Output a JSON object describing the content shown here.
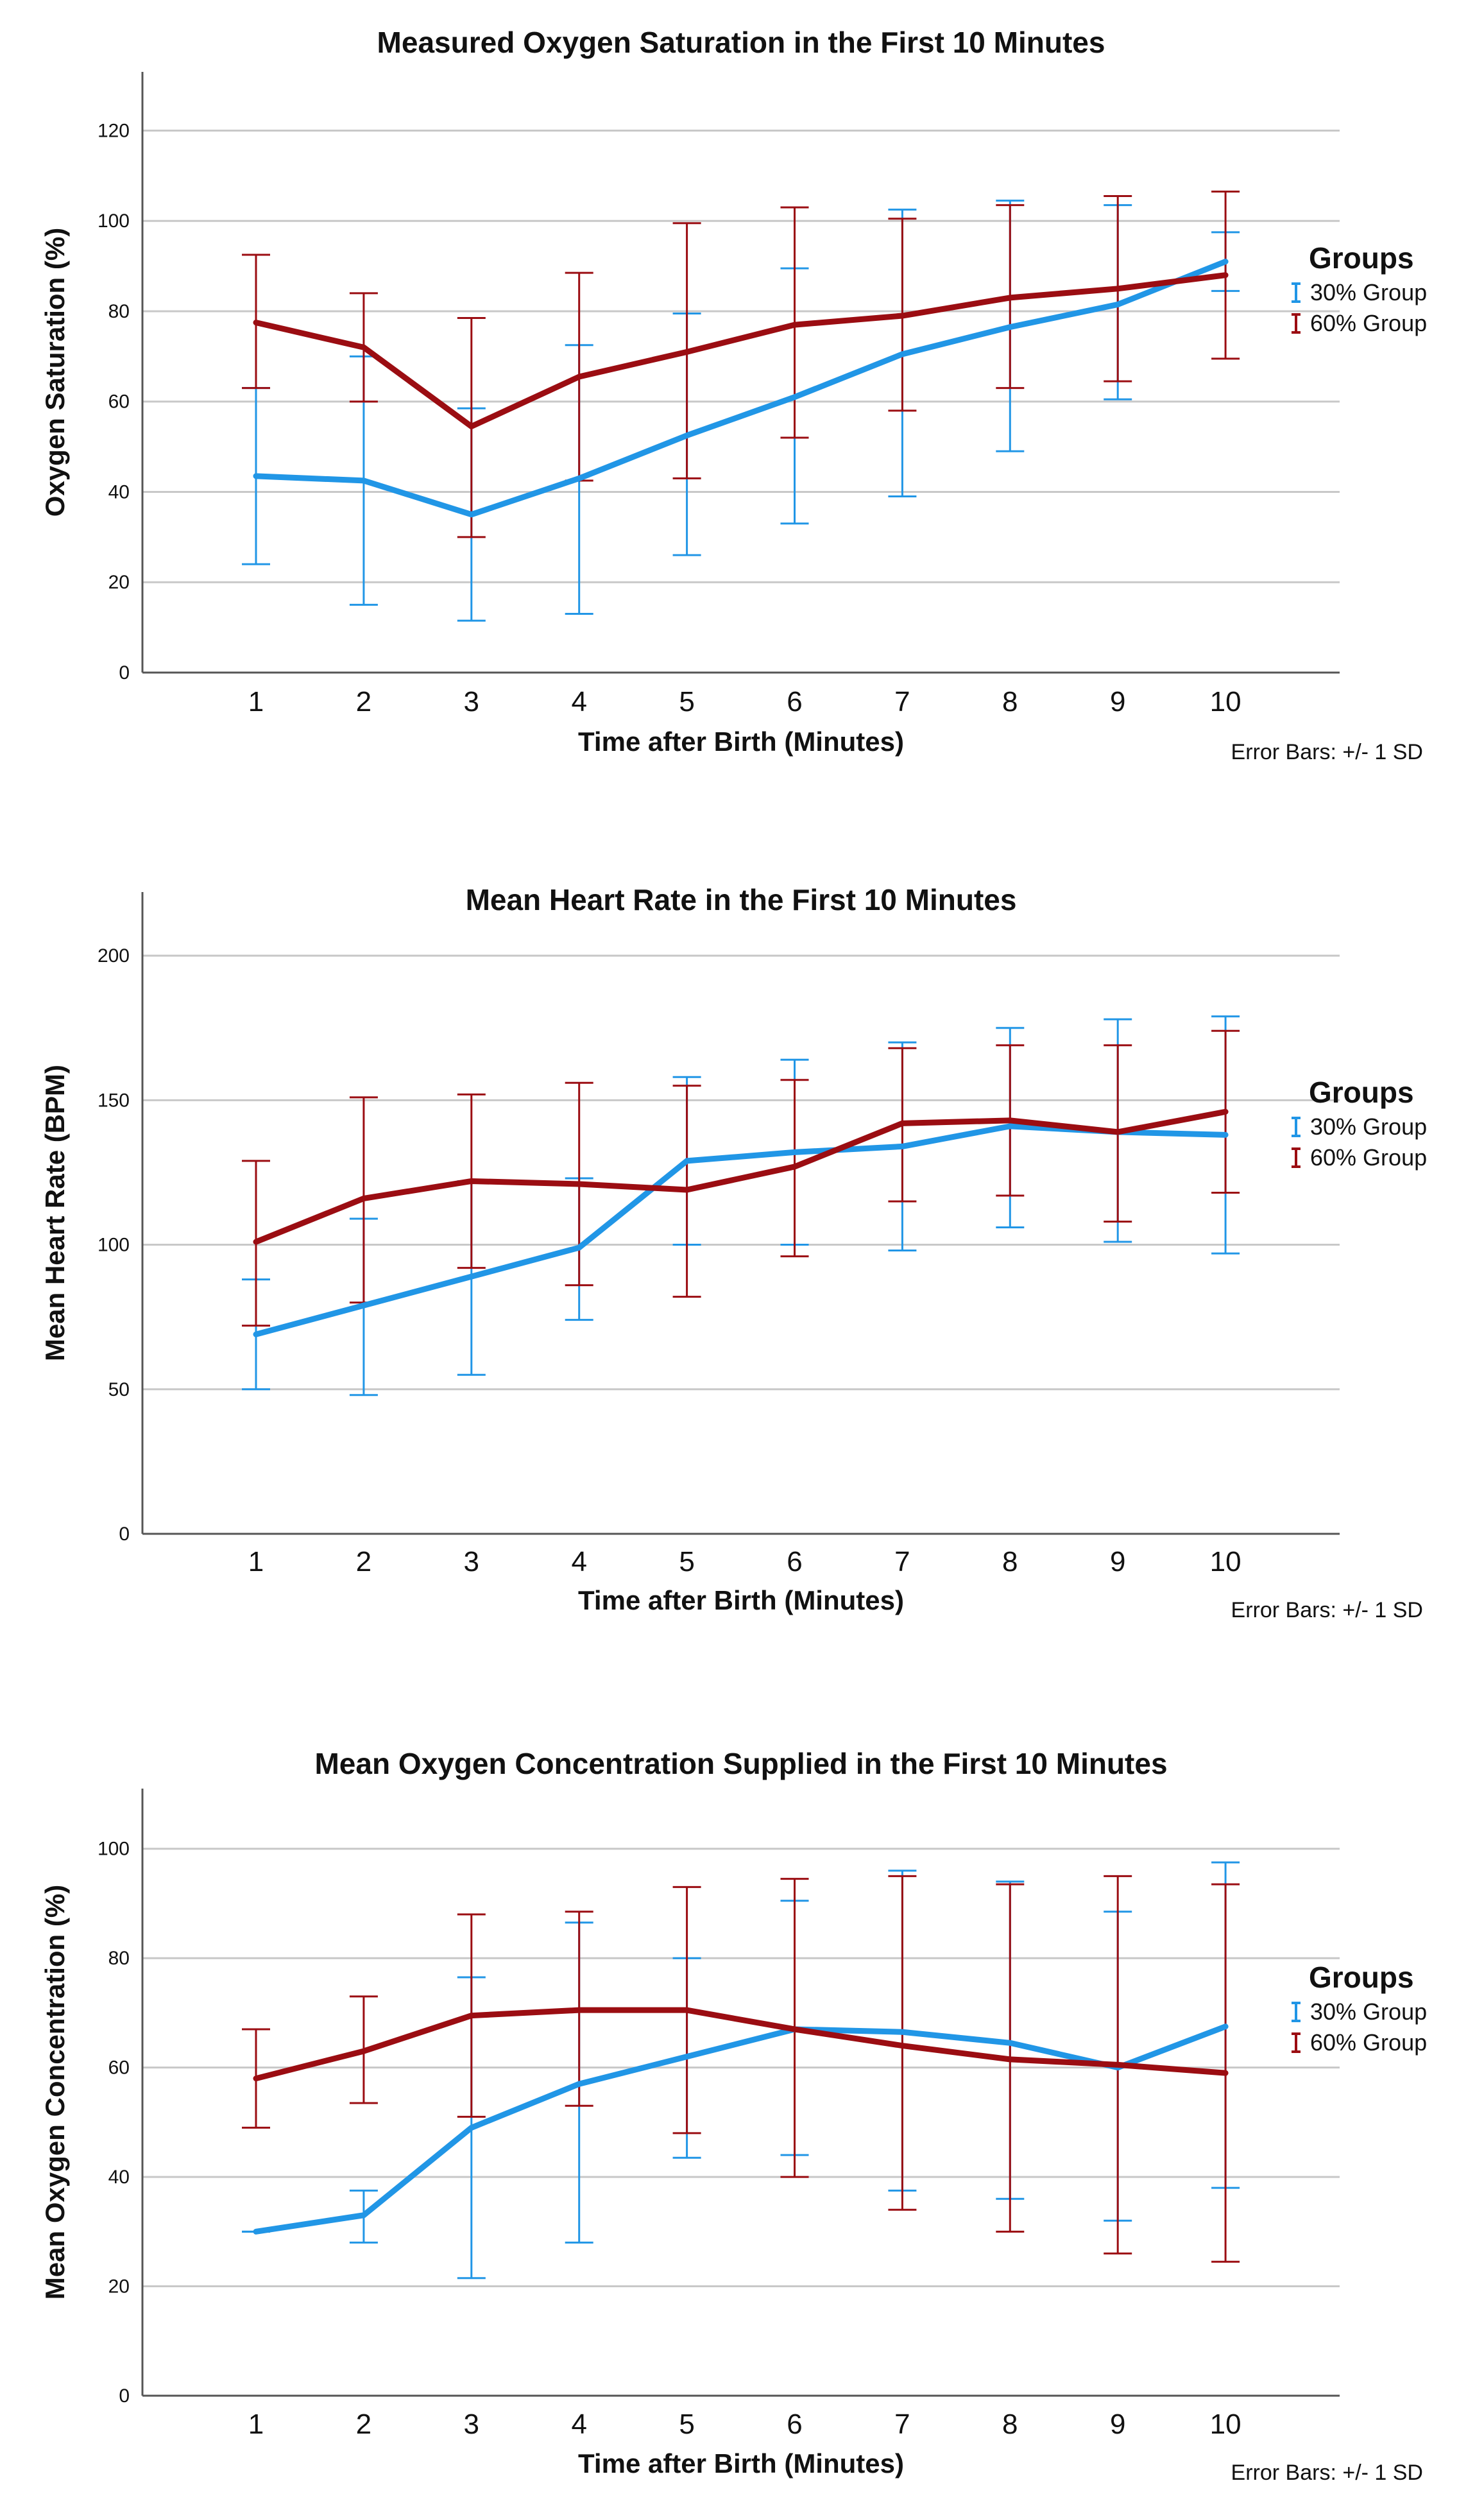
{
  "colors": {
    "group30": "#2196e6",
    "group60": "#9b0d12",
    "grid": "#c8c8c8",
    "axis": "#555555"
  },
  "chart_data": [
    {
      "type": "line",
      "title": "Measured Oxygen Saturation in the First 10 Minutes",
      "xlabel": "Time after Birth (Minutes)",
      "ylabel": "Oxygen Saturation (%)",
      "ylim": [
        0,
        133
      ],
      "yticks": [
        0,
        20,
        40,
        60,
        80,
        100,
        120
      ],
      "categories": [
        "1",
        "2",
        "3",
        "4",
        "5",
        "6",
        "7",
        "8",
        "9",
        "10"
      ],
      "legend_title": "Groups",
      "note": "Error Bars: +/- 1 SD",
      "series": [
        {
          "name": "30% Group",
          "values": [
            43.5,
            42.5,
            35,
            43,
            52.5,
            61,
            70.5,
            76.5,
            81.5,
            91
          ],
          "lower": [
            24,
            15,
            11.5,
            13,
            26,
            33,
            39,
            49,
            60.5,
            84.5
          ],
          "upper": [
            63,
            70,
            58.5,
            72.5,
            79.5,
            89.5,
            102.5,
            104.5,
            103.5,
            97.5
          ]
        },
        {
          "name": "60% Group",
          "values": [
            77.5,
            72,
            54.5,
            65.5,
            71,
            77,
            79,
            83,
            85,
            88
          ],
          "lower": [
            63,
            60,
            30,
            42.5,
            43,
            52,
            58,
            63,
            64.5,
            69.5
          ],
          "upper": [
            92.5,
            84,
            78.5,
            88.5,
            99.5,
            103,
            100.5,
            103.5,
            105.5,
            106.5
          ]
        }
      ]
    },
    {
      "type": "line",
      "title": "Mean Heart Rate in the First 10 Minutes",
      "xlabel": "Time after Birth (Minutes)",
      "ylabel": "Mean Heart Rate (BPM)",
      "ylim": [
        0,
        222
      ],
      "yticks": [
        0,
        50,
        100,
        150,
        200
      ],
      "categories": [
        "1",
        "2",
        "3",
        "4",
        "5",
        "6",
        "7",
        "8",
        "9",
        "10"
      ],
      "legend_title": "Groups",
      "note": "Error Bars: +/- 1 SD",
      "series": [
        {
          "name": "30% Group",
          "values": [
            69,
            79,
            89,
            99,
            129,
            132,
            134,
            141,
            139,
            138
          ],
          "lower": [
            50,
            48,
            55,
            74,
            100,
            100,
            98,
            106,
            101,
            97
          ],
          "upper": [
            88,
            109,
            122,
            123,
            158,
            164,
            170,
            175,
            178,
            179
          ]
        },
        {
          "name": "60% Group",
          "values": [
            101,
            116,
            122,
            121,
            119,
            127,
            142,
            143,
            139,
            146
          ],
          "lower": [
            72,
            80,
            92,
            86,
            82,
            96,
            115,
            117,
            108,
            118
          ],
          "upper": [
            129,
            151,
            152,
            156,
            155,
            157,
            168,
            169,
            169,
            174
          ]
        }
      ]
    },
    {
      "type": "line",
      "title": "Mean Oxygen Concentration Supplied in the First 10 Minutes",
      "xlabel": "Time after Birth (Minutes)",
      "ylabel": "Mean Oxygen Concentration (%)",
      "ylim": [
        0,
        111
      ],
      "yticks": [
        0,
        20,
        40,
        60,
        80,
        100
      ],
      "categories": [
        "1",
        "2",
        "3",
        "4",
        "5",
        "6",
        "7",
        "8",
        "9",
        "10"
      ],
      "legend_title": "Groups",
      "note": "Error Bars: +/- 1 SD",
      "series": [
        {
          "name": "30% Group",
          "values": [
            30,
            33,
            49,
            57,
            62,
            67,
            66.5,
            64.5,
            60,
            67.5
          ],
          "lower": [
            30,
            28,
            21.5,
            28,
            43.5,
            44,
            37.5,
            36,
            32,
            38
          ],
          "upper": [
            30,
            37.5,
            76.5,
            86.5,
            80,
            90.5,
            96,
            94,
            88.5,
            97.5
          ]
        },
        {
          "name": "60% Group",
          "values": [
            58,
            63,
            69.5,
            70.5,
            70.5,
            67,
            64,
            61.5,
            60.5,
            59
          ],
          "lower": [
            49,
            53.5,
            51,
            53,
            48,
            40,
            34,
            30,
            26,
            24.5
          ],
          "upper": [
            67,
            73,
            88,
            88.5,
            93,
            94.5,
            95,
            93.5,
            95,
            93.5
          ]
        }
      ]
    }
  ]
}
